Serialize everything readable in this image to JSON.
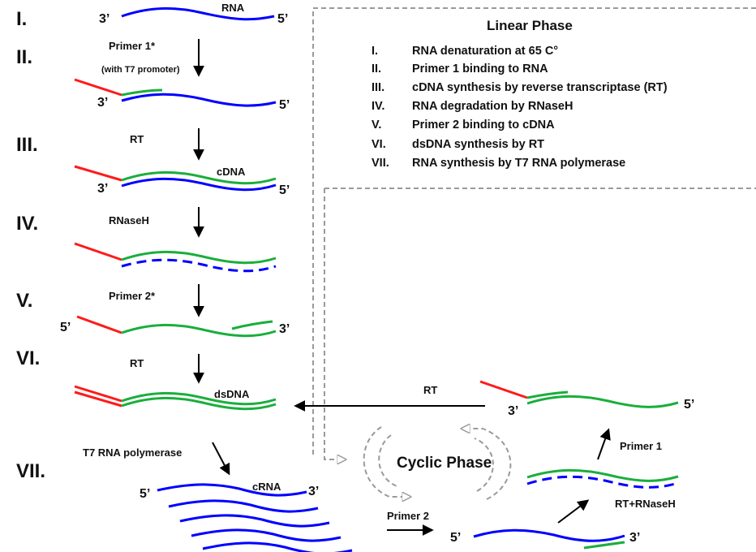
{
  "steps": [
    "I.",
    "II.",
    "III.",
    "IV.",
    "V.",
    "VI.",
    "VII."
  ],
  "labels": {
    "rna": "RNA",
    "primer1": "Primer 1*",
    "primer1_note": "(with T7 promoter)",
    "rt": "RT",
    "cdna": "cDNA",
    "rnaseh": "RNaseH",
    "primer2": "Primer 2*",
    "dsdna": "dsDNA",
    "t7": "T7 RNA polymerase",
    "crna": "cRNA",
    "cyc_rt": "RT",
    "cyc_primer1": "Primer 1",
    "cyc_rt_rnaseh": "RT+RNaseH",
    "cyc_primer2": "Primer 2"
  },
  "ends": {
    "three": "3’",
    "five": "5’"
  },
  "linear_phase": {
    "title": "Linear Phase",
    "items": [
      {
        "num": "I.",
        "text": "RNA denaturation at 65 C°"
      },
      {
        "num": "II.",
        "text": "Primer 1 binding to RNA"
      },
      {
        "num": "III.",
        "text": "cDNA synthesis by reverse transcriptase (RT)"
      },
      {
        "num": "IV.",
        "text": "RNA degradation by RNaseH"
      },
      {
        "num": "V.",
        "text": "Primer 2 binding to cDNA"
      },
      {
        "num": "VI.",
        "text": "dsDNA synthesis by RT"
      },
      {
        "num": "VII.",
        "text": "RNA synthesis by T7 RNA polymerase"
      }
    ]
  },
  "cyclic_phase": {
    "title": "Cyclic Phase"
  },
  "colors": {
    "rna": "#0000ff",
    "dna": "#1aae3c",
    "promoter": "#ff1a1a",
    "phase_border": "#9a9a9a"
  }
}
